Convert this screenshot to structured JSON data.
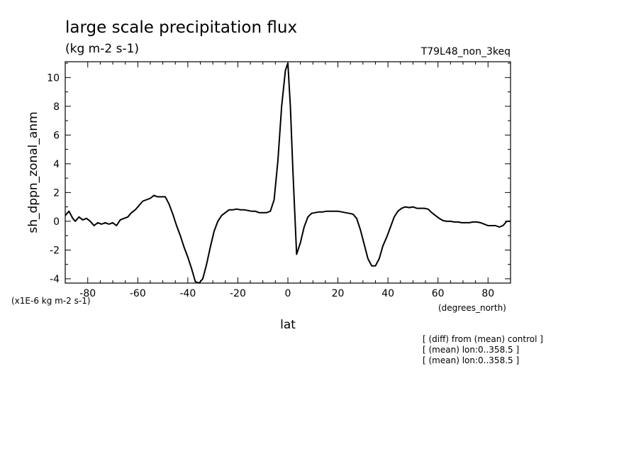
{
  "chart_data": {
    "type": "line",
    "title": "large scale precipitation flux",
    "subtitle": "(kg m-2 s-1)",
    "experiment": "T79L48_non_3keq",
    "xlabel": "lat",
    "ylabel": "sh_dppn_zonal_anm",
    "x_units": "(degrees_north)",
    "y_scale_note": "(x1E-6 kg m-2 s-1)",
    "xlim": [
      -89,
      89
    ],
    "ylim": [
      -4.3,
      11.1
    ],
    "xticks": [
      -80,
      -60,
      -40,
      -20,
      0,
      20,
      40,
      60,
      80
    ],
    "xtick_labels": [
      "-80",
      "-60",
      "-40",
      "-20",
      "0",
      "20",
      "40",
      "60",
      "80"
    ],
    "yticks": [
      -4,
      -2,
      0,
      2,
      4,
      6,
      8,
      10
    ],
    "ytick_labels": [
      "-4",
      "-2",
      "0",
      "2",
      "4",
      "6",
      "8",
      "10"
    ],
    "notes": [
      "[ (diff) from (mean) control ]",
      "[ (mean) lon:0..358.5 ]",
      "[ (mean) lon:0..358.5 ]"
    ],
    "line_color": "#000000",
    "grid": false,
    "series": [
      {
        "x": [
          -89,
          -87.5,
          -86,
          -85,
          -83.5,
          -82,
          -80.5,
          -79,
          -77.5,
          -76,
          -74.5,
          -73,
          -71.5,
          -70,
          -68.5,
          -67,
          -65.5,
          -64,
          -62.5,
          -61,
          -59.5,
          -58,
          -56.5,
          -55,
          -53.5,
          -52,
          -50.5,
          -49,
          -47.5,
          -46,
          -44.5,
          -43,
          -41.5,
          -40,
          -38.5,
          -37,
          -35.5,
          -34,
          -32.5,
          -31,
          -29.5,
          -28,
          -26.5,
          -25,
          -23.5,
          -22,
          -20.5,
          -19,
          -17.5,
          -16,
          -14.5,
          -13,
          -11.5,
          -10,
          -8.5,
          -7,
          -5.5,
          -4,
          -2.5,
          -1,
          0,
          1,
          2,
          3.5,
          5,
          6.5,
          8,
          9.5,
          11,
          12.5,
          14,
          15.5,
          17,
          18.5,
          20,
          21.5,
          23,
          24.5,
          26,
          27.5,
          29,
          30.5,
          32,
          33.5,
          35,
          36.5,
          38,
          39.5,
          41,
          42.5,
          44,
          45.5,
          47,
          48.5,
          50,
          51.5,
          53,
          54.5,
          56,
          57.5,
          59,
          60.5,
          62,
          63.5,
          65,
          66.5,
          68,
          69.5,
          71,
          72.5,
          74,
          75.5,
          77,
          78.5,
          80,
          81.5,
          83,
          84.5,
          86,
          87.5,
          89
        ],
        "y": [
          0.4,
          0.7,
          0.2,
          0.0,
          0.3,
          0.1,
          0.2,
          0.0,
          -0.3,
          -0.1,
          -0.2,
          -0.1,
          -0.2,
          -0.1,
          -0.3,
          0.1,
          0.2,
          0.3,
          0.6,
          0.8,
          1.1,
          1.4,
          1.5,
          1.6,
          1.8,
          1.7,
          1.7,
          1.7,
          1.2,
          0.5,
          -0.3,
          -1.0,
          -1.8,
          -2.5,
          -3.3,
          -4.2,
          -4.3,
          -4.0,
          -3.0,
          -1.8,
          -0.7,
          0.0,
          0.4,
          0.6,
          0.8,
          0.8,
          0.85,
          0.8,
          0.8,
          0.75,
          0.7,
          0.7,
          0.6,
          0.6,
          0.6,
          0.7,
          1.5,
          4.2,
          8.0,
          10.5,
          11.0,
          8.0,
          3.5,
          -2.3,
          -1.5,
          -0.4,
          0.3,
          0.55,
          0.6,
          0.65,
          0.65,
          0.7,
          0.7,
          0.7,
          0.7,
          0.65,
          0.6,
          0.55,
          0.5,
          0.2,
          -0.6,
          -1.6,
          -2.6,
          -3.1,
          -3.1,
          -2.6,
          -1.7,
          -1.1,
          -0.4,
          0.3,
          0.7,
          0.9,
          1.0,
          0.95,
          1.0,
          0.9,
          0.9,
          0.9,
          0.85,
          0.6,
          0.4,
          0.2,
          0.05,
          0.0,
          0.0,
          -0.05,
          -0.05,
          -0.1,
          -0.1,
          -0.1,
          -0.05,
          -0.05,
          -0.1,
          -0.2,
          -0.3,
          -0.3,
          -0.3,
          -0.4,
          -0.3,
          0.0,
          0.0
        ]
      }
    ]
  }
}
